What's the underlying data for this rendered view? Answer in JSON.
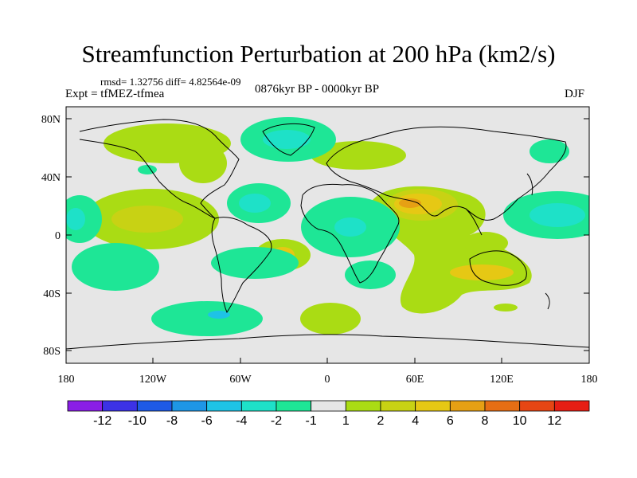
{
  "title": "Streamfunction Perturbation at 200 hPa (km2/s)",
  "stats": "rmsd= 1.32756 diff= 4.82564e-09",
  "experiment": "Expt = tfMEZ-tfmea",
  "period": "0876kyr BP - 0000kyr BP",
  "season": "DJF",
  "lat_labels": [
    "80N",
    "40N",
    "0",
    "40S",
    "80S"
  ],
  "lon_labels": [
    "180",
    "120W",
    "60W",
    "0",
    "60E",
    "120E",
    "180"
  ],
  "colorbar": {
    "labels": [
      "-12",
      "-10",
      "-8",
      "-6",
      "-4",
      "-2",
      "-1",
      "1",
      "2",
      "4",
      "6",
      "8",
      "10",
      "12"
    ],
    "colors": [
      "#8a1ee6",
      "#3c32e6",
      "#1e5ae6",
      "#1e96e6",
      "#1ec3e6",
      "#1ee1c8",
      "#1ee696",
      "#e6e6e6",
      "#aadc14",
      "#c8d214",
      "#e6c814",
      "#e6a014",
      "#e66e14",
      "#e64614",
      "#e61e14"
    ]
  },
  "colors": {
    "neutral": "#e6e6e6",
    "pos1": "#aadc14",
    "pos2": "#c8d214",
    "pos3": "#e6c814",
    "pos4": "#e6a014",
    "neg1": "#1ee696",
    "neg2": "#1ee1c8",
    "neg3": "#1ec3e6"
  }
}
